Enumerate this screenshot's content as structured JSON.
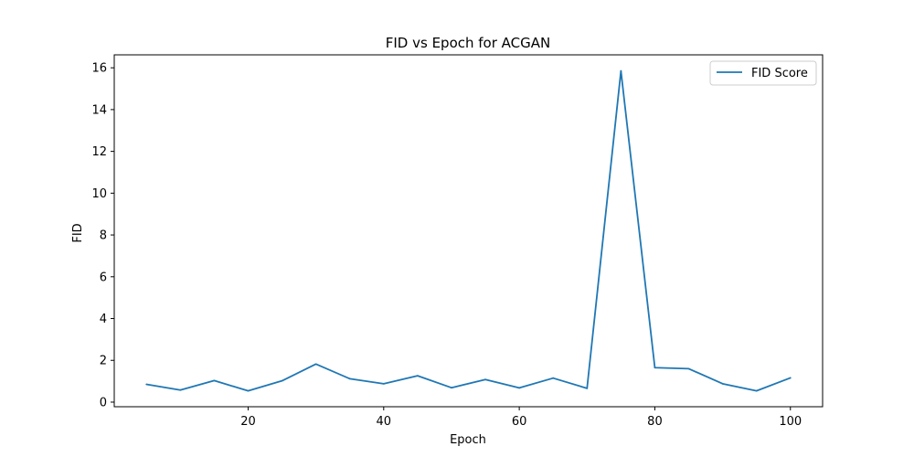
{
  "chart_data": {
    "type": "line",
    "title": "FID vs Epoch for ACGAN",
    "xlabel": "Epoch",
    "ylabel": "FID",
    "xlim": [
      0.25,
      104.75
    ],
    "ylim": [
      -0.22,
      16.62
    ],
    "xticks": [
      20,
      40,
      60,
      80,
      100
    ],
    "yticks": [
      0,
      2,
      4,
      6,
      8,
      10,
      12,
      14,
      16
    ],
    "grid": false,
    "legend_position": "top-right",
    "series": [
      {
        "name": "FID Score",
        "color": "#1f77b4",
        "x": [
          5,
          10,
          15,
          20,
          25,
          30,
          35,
          40,
          45,
          50,
          55,
          60,
          65,
          70,
          75,
          80,
          85,
          90,
          95,
          100
        ],
        "y": [
          0.85,
          0.58,
          1.03,
          0.54,
          1.02,
          1.82,
          1.12,
          0.88,
          1.26,
          0.69,
          1.08,
          0.68,
          1.15,
          0.66,
          15.85,
          1.65,
          1.6,
          0.88,
          0.54,
          1.16
        ]
      }
    ]
  }
}
